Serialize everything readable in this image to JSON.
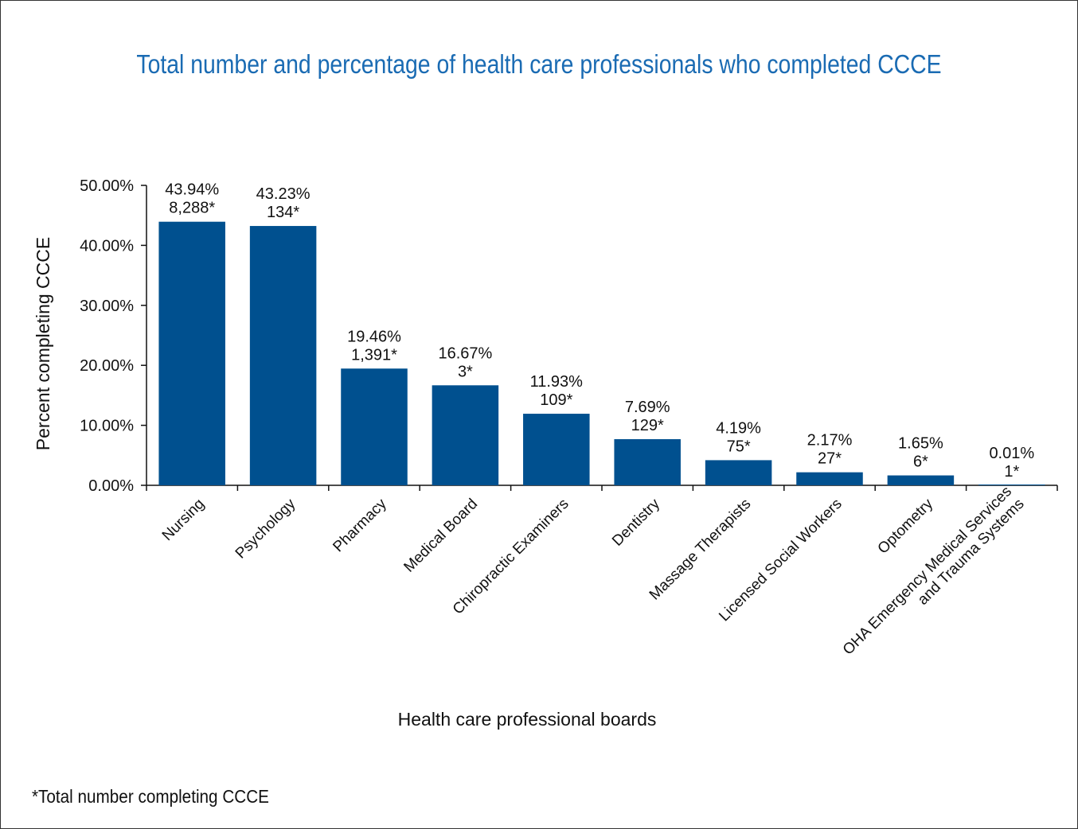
{
  "chart_data": {
    "type": "bar",
    "title": "Total number and percentage of health care professionals who completed CCCE",
    "xlabel": "Health care professional boards",
    "ylabel": "Percent completing CCCE",
    "ylim": [
      0,
      50
    ],
    "yticks": [
      "0.00%",
      "10.00%",
      "20.00%",
      "30.00%",
      "40.00%",
      "50.00%"
    ],
    "grid": false,
    "legend": "none",
    "bar_color": "#00508f",
    "categories": [
      [
        "Nursing"
      ],
      [
        "Psychology"
      ],
      [
        "Pharmacy"
      ],
      [
        "Medical Board"
      ],
      [
        "Chiropractic Examiners"
      ],
      [
        "Dentistry"
      ],
      [
        "Massage Therapists"
      ],
      [
        "Licensed Social Workers"
      ],
      [
        "Optometry"
      ],
      [
        "OHA Emergency Medical Services",
        "and Trauma Systems"
      ]
    ],
    "values": [
      43.94,
      43.23,
      19.46,
      16.67,
      11.93,
      7.69,
      4.19,
      2.17,
      1.65,
      0.01
    ],
    "percent_labels": [
      "43.94%",
      "43.23%",
      "19.46%",
      "16.67%",
      "11.93%",
      "7.69%",
      "4.19%",
      "2.17%",
      "1.65%",
      "0.01%"
    ],
    "count_labels": [
      "8,288*",
      "134*",
      "1,391*",
      "3*",
      "109*",
      "129*",
      "75*",
      "27*",
      "6*",
      "1*"
    ],
    "footnote": "*Total number completing CCCE"
  }
}
